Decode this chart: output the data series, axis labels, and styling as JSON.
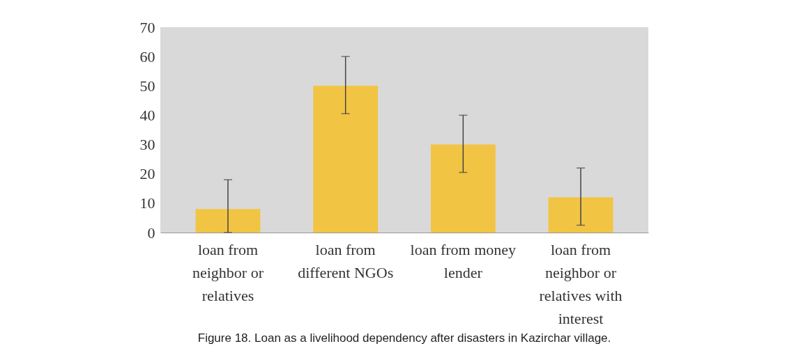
{
  "chart_data": {
    "type": "bar",
    "categories": [
      "loan from neighbor or relatives",
      "loan from different NGOs",
      "loan from money lender",
      "loan from neighbor or relatives with interest"
    ],
    "values": [
      8,
      50,
      30,
      12
    ],
    "errors": [
      [
        0,
        18
      ],
      [
        40.5,
        60
      ],
      [
        20.5,
        40
      ],
      [
        2.5,
        22
      ]
    ],
    "color": "#f2c443",
    "ylim": [
      0,
      70
    ],
    "yticks": [
      0,
      10,
      20,
      30,
      40,
      50,
      60,
      70
    ],
    "grid": false,
    "annotations": [
      "Figure 18. Loan as a livelihood dependency after disasters in Kazirchar village."
    ]
  }
}
